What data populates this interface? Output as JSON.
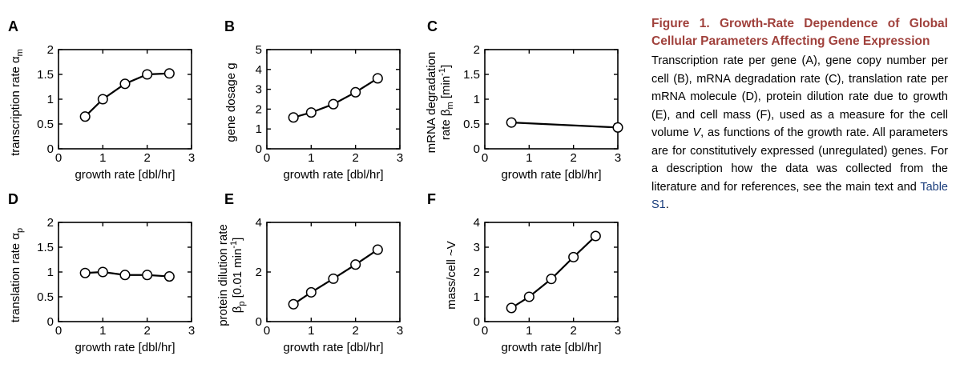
{
  "caption": {
    "title": "Figure 1. Growth-Rate Dependence of Global Cellular Parameters Affecting Gene Expression",
    "body_pre": "Transcription rate per gene (A), gene copy number per cell (B), mRNA degradation rate (C), translation rate per mRNA molecule (D), protein dilution rate due to growth (E), and cell mass (F), used as a measure for the cell volume ",
    "body_var": "V",
    "body_mid": ", as functions of the growth rate. All parameters are for constitutively expressed (unregulated) genes. For a description how the data was collected from the literature and for references, see the main text and ",
    "link_text": "Table S1",
    "body_end": "."
  },
  "colors": {
    "caption_title": "#a0413c",
    "link": "#1a3d7c",
    "line": "#000000",
    "marker_fill": "#ffffff"
  },
  "chart_data": [
    {
      "panel": "A",
      "type": "line",
      "xlabel": "growth rate [dbl/hr]",
      "ylabel": [
        {
          "t": "transcription rate α"
        },
        {
          "t": "m",
          "sub": true
        }
      ],
      "xlim": [
        0,
        3
      ],
      "ylim": [
        0,
        2
      ],
      "xticks": [
        "0",
        "1",
        "2",
        "3"
      ],
      "yticks": [
        "0",
        "0.5",
        "1",
        "1.5",
        "2"
      ],
      "x": [
        0.6,
        1.0,
        1.5,
        2.0,
        2.5
      ],
      "y": [
        0.65,
        1.0,
        1.31,
        1.5,
        1.52
      ]
    },
    {
      "panel": "B",
      "type": "line",
      "xlabel": "growth rate [dbl/hr]",
      "ylabel": [
        {
          "t": "gene dosage g"
        }
      ],
      "xlim": [
        0,
        3
      ],
      "ylim": [
        0,
        5
      ],
      "xticks": [
        "0",
        "1",
        "2",
        "3"
      ],
      "yticks": [
        "0",
        "1",
        "2",
        "3",
        "4",
        "5"
      ],
      "x": [
        0.6,
        1.0,
        1.5,
        2.0,
        2.5
      ],
      "y": [
        1.58,
        1.83,
        2.25,
        2.85,
        3.55
      ]
    },
    {
      "panel": "C",
      "type": "line",
      "xlabel": "growth rate [dbl/hr]",
      "ylabel": [
        {
          "t": "mRNA degradation"
        }
      ],
      "ylabel2": [
        {
          "t": "rate β"
        },
        {
          "t": "m",
          "sub": true
        },
        {
          "t": " [min"
        },
        {
          "t": "-1",
          "sup": true
        },
        {
          "t": "]"
        }
      ],
      "xlim": [
        0,
        3
      ],
      "ylim": [
        0,
        2
      ],
      "xticks": [
        "0",
        "1",
        "2",
        "3"
      ],
      "yticks": [
        "0",
        "0.5",
        "1",
        "1.5",
        "2"
      ],
      "x": [
        0.6,
        3.0
      ],
      "y": [
        0.53,
        0.43
      ]
    },
    {
      "panel": "D",
      "type": "line",
      "xlabel": "growth rate [dbl/hr]",
      "ylabel": [
        {
          "t": "translation rate α"
        },
        {
          "t": "p",
          "sub": true
        }
      ],
      "xlim": [
        0,
        3
      ],
      "ylim": [
        0,
        2
      ],
      "xticks": [
        "0",
        "1",
        "2",
        "3"
      ],
      "yticks": [
        "0",
        "0.5",
        "1",
        "1.5",
        "2"
      ],
      "x": [
        0.6,
        1.0,
        1.5,
        2.0,
        2.5
      ],
      "y": [
        0.98,
        1.0,
        0.94,
        0.94,
        0.91
      ]
    },
    {
      "panel": "E",
      "type": "line",
      "xlabel": "growth rate [dbl/hr]",
      "ylabel": [
        {
          "t": "protein dilution rate"
        }
      ],
      "ylabel2": [
        {
          "t": "β"
        },
        {
          "t": "p",
          "sub": true
        },
        {
          "t": " [0.01 min"
        },
        {
          "t": "-1",
          "sup": true
        },
        {
          "t": "]"
        }
      ],
      "xlim": [
        0,
        3
      ],
      "ylim": [
        0,
        4
      ],
      "xticks": [
        "0",
        "1",
        "2",
        "3"
      ],
      "yticks": [
        "0",
        "2",
        "4"
      ],
      "x": [
        0.6,
        1.0,
        1.5,
        2.0,
        2.5
      ],
      "y": [
        0.7,
        1.18,
        1.73,
        2.3,
        2.9
      ]
    },
    {
      "panel": "F",
      "type": "line",
      "xlabel": "growth rate [dbl/hr]",
      "ylabel": [
        {
          "t": "mass/cell  ~V"
        }
      ],
      "xlim": [
        0,
        3
      ],
      "ylim": [
        0,
        4
      ],
      "xticks": [
        "0",
        "1",
        "2",
        "3"
      ],
      "yticks": [
        "0",
        "1",
        "2",
        "3",
        "4"
      ],
      "x": [
        0.6,
        1.0,
        1.5,
        2.0,
        2.5
      ],
      "y": [
        0.55,
        1.0,
        1.72,
        2.6,
        3.45
      ]
    }
  ]
}
